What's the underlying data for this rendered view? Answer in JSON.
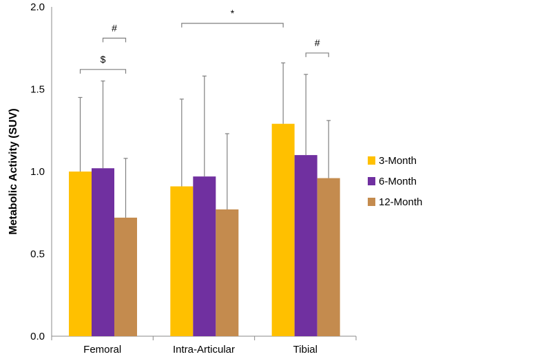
{
  "chart_data": {
    "type": "bar",
    "title": "",
    "xlabel": "",
    "ylabel": "Metabolic Activity (SUV)",
    "ylim": [
      0,
      2.0
    ],
    "yticks": [
      "0.0",
      "0.5",
      "1.0",
      "1.5",
      "2.0"
    ],
    "categories": [
      "Femoral",
      "Intra-Articular",
      "Tibial"
    ],
    "series": [
      {
        "name": "3-Month",
        "color": "#FFC000",
        "values": [
          1.0,
          0.91,
          1.29
        ],
        "error_upper": [
          1.45,
          1.44,
          1.66
        ]
      },
      {
        "name": "6-Month",
        "color": "#7030A0",
        "values": [
          1.02,
          0.97,
          1.1
        ],
        "error_upper": [
          1.55,
          1.58,
          1.59
        ]
      },
      {
        "name": "12-Month",
        "color": "#C48B4E",
        "values": [
          0.72,
          0.77,
          0.96
        ],
        "error_upper": [
          1.08,
          1.23,
          1.31
        ]
      }
    ],
    "legend": "right",
    "annotations": [
      {
        "label": "$",
        "from": [
          0,
          0
        ],
        "to": [
          0,
          2
        ],
        "level": 1.62
      },
      {
        "label": "#",
        "from": [
          0,
          1
        ],
        "to": [
          0,
          2
        ],
        "level": 1.81
      },
      {
        "label": "*",
        "from": [
          1,
          0
        ],
        "to": [
          2,
          0
        ],
        "level": 1.9
      },
      {
        "label": "#",
        "from": [
          2,
          1
        ],
        "to": [
          2,
          2
        ],
        "level": 1.72
      }
    ]
  }
}
